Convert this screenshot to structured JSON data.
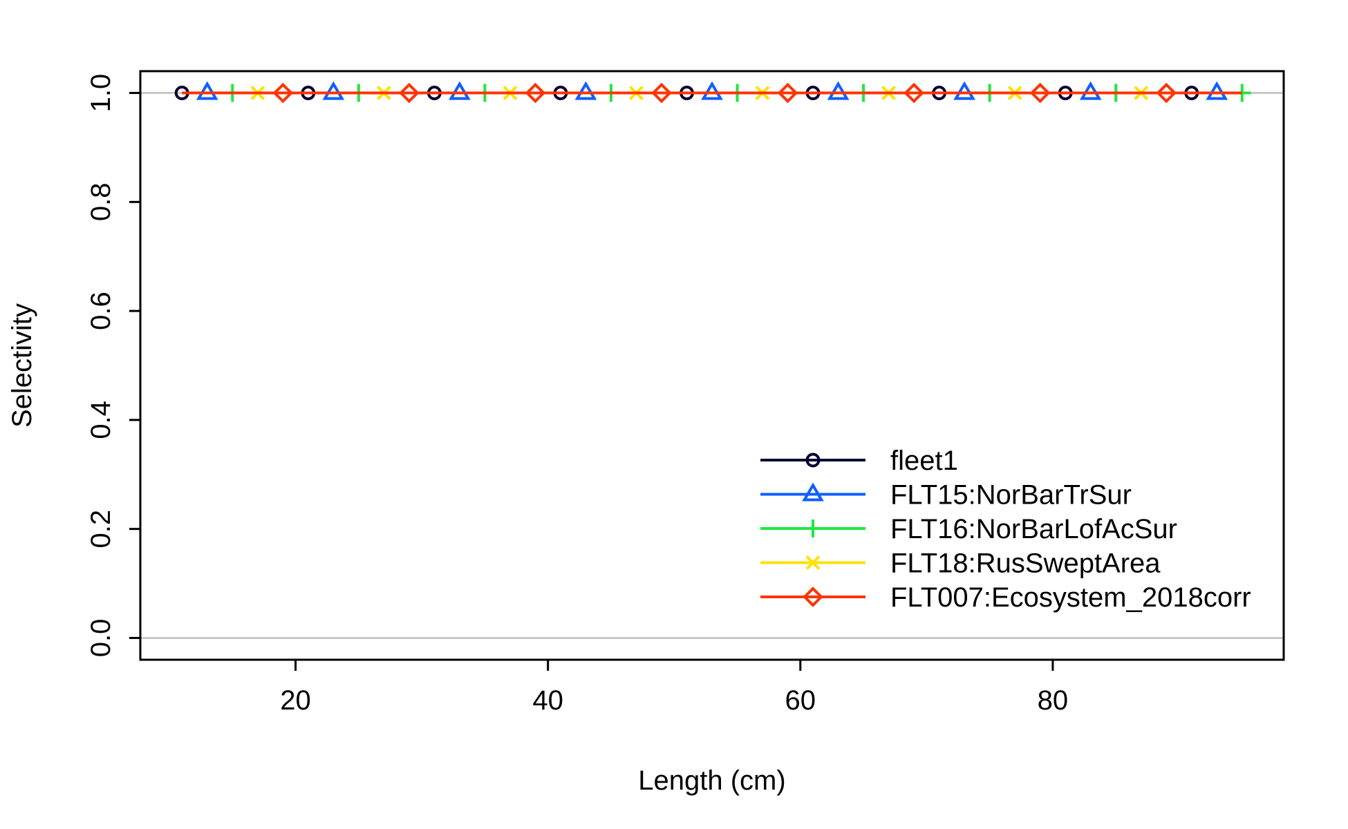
{
  "chart_data": {
    "type": "line",
    "title": "",
    "xlabel": "Length (cm)",
    "ylabel": "Selectivity",
    "xlim": [
      7.7,
      98.3
    ],
    "ylim": [
      -0.04,
      1.04
    ],
    "x_ticks": [
      20,
      40,
      60,
      80
    ],
    "y_ticks": [
      0.0,
      0.2,
      0.4,
      0.6,
      0.8,
      1.0
    ],
    "y_tick_labels": [
      "0.0",
      "0.2",
      "0.4",
      "0.6",
      "0.8",
      "1.0"
    ],
    "reference_lines_y": [
      0,
      1
    ],
    "reference_line_color": "#bebebe",
    "legend_position": "bottom-right",
    "x": [
      11,
      13,
      15,
      17,
      19,
      21,
      23,
      25,
      27,
      29,
      31,
      33,
      35,
      37,
      39,
      41,
      43,
      45,
      47,
      49,
      51,
      53,
      55,
      57,
      59,
      61,
      63,
      65,
      67,
      69,
      71,
      73,
      75,
      77,
      79,
      81,
      83,
      85,
      87,
      89,
      91,
      93,
      95
    ],
    "series": [
      {
        "name": "fleet1",
        "color": "#000033",
        "marker": "circle",
        "values": [
          1,
          1,
          1,
          1,
          1,
          1,
          1,
          1,
          1,
          1,
          1,
          1,
          1,
          1,
          1,
          1,
          1,
          1,
          1,
          1,
          1,
          1,
          1,
          1,
          1,
          1,
          1,
          1,
          1,
          1,
          1,
          1,
          1,
          1,
          1,
          1,
          1,
          1,
          1,
          1,
          1,
          1,
          1
        ]
      },
      {
        "name": "FLT15:NorBarTrSur",
        "color": "#0f5fff",
        "marker": "triangle",
        "values": [
          1,
          1,
          1,
          1,
          1,
          1,
          1,
          1,
          1,
          1,
          1,
          1,
          1,
          1,
          1,
          1,
          1,
          1,
          1,
          1,
          1,
          1,
          1,
          1,
          1,
          1,
          1,
          1,
          1,
          1,
          1,
          1,
          1,
          1,
          1,
          1,
          1,
          1,
          1,
          1,
          1,
          1,
          1
        ]
      },
      {
        "name": "FLT16:NorBarLofAcSur",
        "color": "#1ee83f",
        "marker": "plus",
        "values": [
          1,
          1,
          1,
          1,
          1,
          1,
          1,
          1,
          1,
          1,
          1,
          1,
          1,
          1,
          1,
          1,
          1,
          1,
          1,
          1,
          1,
          1,
          1,
          1,
          1,
          1,
          1,
          1,
          1,
          1,
          1,
          1,
          1,
          1,
          1,
          1,
          1,
          1,
          1,
          1,
          1,
          1,
          1
        ]
      },
      {
        "name": "FLT18:RusSweptArea",
        "color": "#ffe000",
        "marker": "cross",
        "values": [
          1,
          1,
          1,
          1,
          1,
          1,
          1,
          1,
          1,
          1,
          1,
          1,
          1,
          1,
          1,
          1,
          1,
          1,
          1,
          1,
          1,
          1,
          1,
          1,
          1,
          1,
          1,
          1,
          1,
          1,
          1,
          1,
          1,
          1,
          1,
          1,
          1,
          1,
          1,
          1,
          1,
          1,
          1
        ]
      },
      {
        "name": "FLT007:Ecosystem_2018corr",
        "color": "#ff3300",
        "marker": "diamond",
        "values": [
          1,
          1,
          1,
          1,
          1,
          1,
          1,
          1,
          1,
          1,
          1,
          1,
          1,
          1,
          1,
          1,
          1,
          1,
          1,
          1,
          1,
          1,
          1,
          1,
          1,
          1,
          1,
          1,
          1,
          1,
          1,
          1,
          1,
          1,
          1,
          1,
          1,
          1,
          1,
          1,
          1,
          1,
          1
        ]
      }
    ]
  }
}
